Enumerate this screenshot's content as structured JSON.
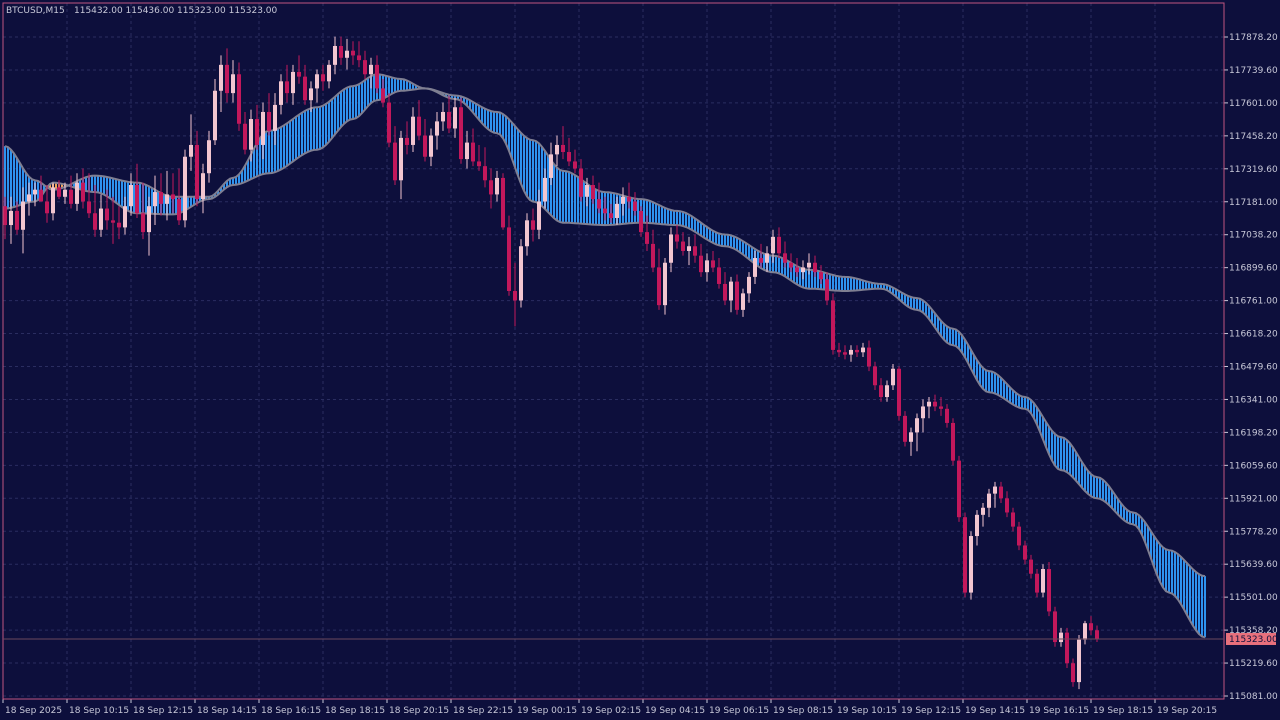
{
  "header": {
    "symbol": "BTCUSD,M15",
    "ohlc": "115432.00 115436.00 115323.00 115323.00"
  },
  "colors": {
    "background": "#0d0f3c",
    "grid": "#2a2d60",
    "frame": "#c0567f",
    "bull_candle": "#f2c6d0",
    "bear_candle": "#c2185b",
    "cloud_up": "#2e93f0",
    "cloud_down": "#f5a65b",
    "ma_line": "#7f7f92",
    "price_label_bg": "#e8707c",
    "price_label_text": "#0d0f3c"
  },
  "chart_data": {
    "type": "candlestick",
    "y_axis": {
      "range": [
        115081.0,
        117878.2
      ],
      "tick_labels": [
        "117878.20",
        "117739.60",
        "117601.00",
        "117458.20",
        "117319.60",
        "117181.00",
        "117038.20",
        "116899.60",
        "116761.00",
        "116618.20",
        "116479.60",
        "116341.00",
        "116198.20",
        "116059.60",
        "115921.00",
        "115778.20",
        "115639.60",
        "115501.00",
        "115358.20",
        "115219.60",
        "115081.00"
      ]
    },
    "x_axis": {
      "tick_labels": [
        "18 Sep 2025",
        "18 Sep 10:15",
        "18 Sep 12:15",
        "18 Sep 14:15",
        "18 Sep 16:15",
        "18 Sep 18:15",
        "18 Sep 20:15",
        "18 Sep 22:15",
        "19 Sep 00:15",
        "19 Sep 02:15",
        "19 Sep 04:15",
        "19 Sep 06:15",
        "19 Sep 08:15",
        "19 Sep 10:15",
        "19 Sep 12:15",
        "19 Sep 14:15",
        "19 Sep 16:15",
        "19 Sep 18:15",
        "19 Sep 20:15"
      ]
    },
    "current_price": "115323.00",
    "current_price_value": 115323.0,
    "cloud": [
      {
        "bar": 0,
        "fast": 117415,
        "slow": 117150
      },
      {
        "bar": 5,
        "fast": 117270,
        "slow": 117180
      },
      {
        "bar": 8,
        "fast": 117230,
        "slow": 117260
      },
      {
        "bar": 15,
        "fast": 117290,
        "slow": 117220
      },
      {
        "bar": 22,
        "fast": 117260,
        "slow": 117130
      },
      {
        "bar": 28,
        "fast": 117200,
        "slow": 117125
      },
      {
        "bar": 34,
        "fast": 117200,
        "slow": 117190
      },
      {
        "bar": 38,
        "fast": 117280,
        "slow": 117250
      },
      {
        "bar": 44,
        "fast": 117480,
        "slow": 117300
      },
      {
        "bar": 52,
        "fast": 117580,
        "slow": 117400
      },
      {
        "bar": 58,
        "fast": 117670,
        "slow": 117530
      },
      {
        "bar": 62,
        "fast": 117720,
        "slow": 117610
      },
      {
        "bar": 66,
        "fast": 117700,
        "slow": 117650
      },
      {
        "bar": 70,
        "fast": 117660,
        "slow": 117660
      },
      {
        "bar": 75,
        "fast": 117630,
        "slow": 117615
      },
      {
        "bar": 82,
        "fast": 117560,
        "slow": 117470
      },
      {
        "bar": 88,
        "fast": 117440,
        "slow": 117180
      },
      {
        "bar": 93,
        "fast": 117310,
        "slow": 117090
      },
      {
        "bar": 100,
        "fast": 117220,
        "slow": 117080
      },
      {
        "bar": 106,
        "fast": 117190,
        "slow": 117090
      },
      {
        "bar": 112,
        "fast": 117140,
        "slow": 117080
      },
      {
        "bar": 120,
        "fast": 117040,
        "slow": 116990
      },
      {
        "bar": 128,
        "fast": 116950,
        "slow": 116880
      },
      {
        "bar": 134,
        "fast": 116890,
        "slow": 116810
      },
      {
        "bar": 140,
        "fast": 116860,
        "slow": 116800
      },
      {
        "bar": 146,
        "fast": 116830,
        "slow": 116810
      },
      {
        "bar": 152,
        "fast": 116770,
        "slow": 116720
      },
      {
        "bar": 158,
        "fast": 116640,
        "slow": 116570
      },
      {
        "bar": 164,
        "fast": 116460,
        "slow": 116370
      },
      {
        "bar": 170,
        "fast": 116350,
        "slow": 116300
      },
      {
        "bar": 176,
        "fast": 116180,
        "slow": 116040
      },
      {
        "bar": 182,
        "fast": 116010,
        "slow": 115920
      },
      {
        "bar": 188,
        "fast": 115860,
        "slow": 115810
      },
      {
        "bar": 194,
        "fast": 115700,
        "slow": 115520
      },
      {
        "bar": 200,
        "fast": 115590,
        "slow": 115330
      }
    ],
    "candles": [
      [
        117160,
        117200,
        117020,
        117080
      ],
      [
        117080,
        117200,
        117000,
        117140
      ],
      [
        117140,
        117180,
        117040,
        117060
      ],
      [
        117060,
        117240,
        116960,
        117180
      ],
      [
        117180,
        117260,
        117120,
        117210
      ],
      [
        117210,
        117260,
        117160,
        117230
      ],
      [
        117230,
        117290,
        117200,
        117180
      ],
      [
        117180,
        117250,
        117090,
        117130
      ],
      [
        117130,
        117260,
        117100,
        117240
      ],
      [
        117240,
        117270,
        117190,
        117200
      ],
      [
        117200,
        117260,
        117170,
        117230
      ],
      [
        117230,
        117290,
        117150,
        117170
      ],
      [
        117170,
        117300,
        117140,
        117260
      ],
      [
        117260,
        117320,
        117150,
        117180
      ],
      [
        117180,
        117300,
        117110,
        117130
      ],
      [
        117130,
        117250,
        117030,
        117060
      ],
      [
        117060,
        117210,
        117030,
        117150
      ],
      [
        117150,
        117230,
        117060,
        117100
      ],
      [
        117100,
        117200,
        117000,
        117090
      ],
      [
        117090,
        117160,
        117020,
        117070
      ],
      [
        117070,
        117200,
        117040,
        117160
      ],
      [
        117160,
        117300,
        117120,
        117250
      ],
      [
        117250,
        117340,
        117110,
        117130
      ],
      [
        117130,
        117260,
        117020,
        117050
      ],
      [
        117050,
        117200,
        116950,
        117160
      ],
      [
        117160,
        117290,
        117080,
        117220
      ],
      [
        117220,
        117300,
        117120,
        117170
      ],
      [
        117170,
        117310,
        117100,
        117210
      ],
      [
        117210,
        117300,
        117130,
        117190
      ],
      [
        117190,
        117320,
        117080,
        117100
      ],
      [
        117100,
        117400,
        117070,
        117370
      ],
      [
        117370,
        117550,
        117310,
        117420
      ],
      [
        117420,
        117480,
        117160,
        117190
      ],
      [
        117190,
        117340,
        117130,
        117300
      ],
      [
        117300,
        117480,
        117260,
        117440
      ],
      [
        117440,
        117700,
        117420,
        117650
      ],
      [
        117650,
        117800,
        117560,
        117760
      ],
      [
        117760,
        117830,
        117600,
        117640
      ],
      [
        117640,
        117780,
        117600,
        117720
      ],
      [
        117720,
        117770,
        117480,
        117510
      ],
      [
        117510,
        117560,
        117380,
        117400
      ],
      [
        117400,
        117570,
        117350,
        117530
      ],
      [
        117530,
        117590,
        117400,
        117420
      ],
      [
        117420,
        117600,
        117360,
        117560
      ],
      [
        117560,
        117640,
        117460,
        117480
      ],
      [
        117480,
        117640,
        117420,
        117590
      ],
      [
        117590,
        117720,
        117550,
        117690
      ],
      [
        117690,
        117760,
        117600,
        117640
      ],
      [
        117640,
        117760,
        117590,
        117730
      ],
      [
        117730,
        117800,
        117680,
        117710
      ],
      [
        117710,
        117760,
        117590,
        117610
      ],
      [
        117610,
        117690,
        117560,
        117660
      ],
      [
        117660,
        117740,
        117600,
        117720
      ],
      [
        117720,
        117760,
        117650,
        117690
      ],
      [
        117690,
        117780,
        117660,
        117760
      ],
      [
        117760,
        117880,
        117720,
        117840
      ],
      [
        117840,
        117880,
        117760,
        117790
      ],
      [
        117790,
        117870,
        117740,
        117820
      ],
      [
        117820,
        117860,
        117760,
        117800
      ],
      [
        117800,
        117860,
        117750,
        117780
      ],
      [
        117780,
        117820,
        117700,
        117720
      ],
      [
        117720,
        117790,
        117660,
        117760
      ],
      [
        117760,
        117800,
        117640,
        117660
      ],
      [
        117660,
        117700,
        117580,
        117600
      ],
      [
        117600,
        117640,
        117410,
        117430
      ],
      [
        117430,
        117500,
        117250,
        117270
      ],
      [
        117270,
        117480,
        117190,
        117450
      ],
      [
        117450,
        117520,
        117380,
        117420
      ],
      [
        117420,
        117580,
        117390,
        117540
      ],
      [
        117540,
        117610,
        117440,
        117460
      ],
      [
        117460,
        117530,
        117350,
        117370
      ],
      [
        117370,
        117490,
        117330,
        117460
      ],
      [
        117460,
        117560,
        117400,
        117520
      ],
      [
        117520,
        117600,
        117480,
        117560
      ],
      [
        117560,
        117630,
        117470,
        117490
      ],
      [
        117490,
        117620,
        117450,
        117580
      ],
      [
        117580,
        117620,
        117340,
        117360
      ],
      [
        117360,
        117480,
        117320,
        117430
      ],
      [
        117430,
        117490,
        117330,
        117350
      ],
      [
        117350,
        117420,
        117310,
        117330
      ],
      [
        117330,
        117410,
        117240,
        117270
      ],
      [
        117270,
        117320,
        117150,
        117210
      ],
      [
        117210,
        117310,
        117180,
        117280
      ],
      [
        117280,
        117300,
        117060,
        117070
      ],
      [
        117070,
        117120,
        116780,
        116800
      ],
      [
        116800,
        116920,
        116650,
        116760
      ],
      [
        116760,
        117020,
        116730,
        116990
      ],
      [
        116990,
        117130,
        116950,
        117100
      ],
      [
        117100,
        117150,
        117010,
        117060
      ],
      [
        117060,
        117230,
        117020,
        117180
      ],
      [
        117180,
        117320,
        117150,
        117280
      ],
      [
        117280,
        117430,
        117250,
        117380
      ],
      [
        117380,
        117460,
        117330,
        117420
      ],
      [
        117420,
        117500,
        117360,
        117390
      ],
      [
        117390,
        117450,
        117330,
        117350
      ],
      [
        117350,
        117400,
        117300,
        117320
      ],
      [
        117320,
        117360,
        117180,
        117200
      ],
      [
        117200,
        117280,
        117160,
        117250
      ],
      [
        117250,
        117290,
        117170,
        117190
      ],
      [
        117190,
        117260,
        117130,
        117150
      ],
      [
        117150,
        117200,
        117100,
        117130
      ],
      [
        117130,
        117170,
        117090,
        117110
      ],
      [
        117110,
        117200,
        117080,
        117170
      ],
      [
        117170,
        117240,
        117120,
        117200
      ],
      [
        117200,
        117260,
        117150,
        117180
      ],
      [
        117180,
        117220,
        117120,
        117140
      ],
      [
        117140,
        117160,
        117030,
        117050
      ],
      [
        117050,
        117120,
        116970,
        117000
      ],
      [
        117000,
        117060,
        116880,
        116900
      ],
      [
        116900,
        116980,
        116720,
        116740
      ],
      [
        116740,
        116940,
        116700,
        116920
      ],
      [
        116920,
        117070,
        116880,
        117040
      ],
      [
        117040,
        117080,
        116980,
        117010
      ],
      [
        117010,
        117050,
        116950,
        116970
      ],
      [
        116970,
        117030,
        116910,
        116990
      ],
      [
        116990,
        117040,
        116920,
        116950
      ],
      [
        116950,
        117000,
        116860,
        116880
      ],
      [
        116880,
        116960,
        116840,
        116930
      ],
      [
        116930,
        116970,
        116880,
        116900
      ],
      [
        116900,
        116940,
        116810,
        116830
      ],
      [
        116830,
        116880,
        116740,
        116760
      ],
      [
        116760,
        116860,
        116710,
        116840
      ],
      [
        116840,
        116870,
        116700,
        116720
      ],
      [
        116720,
        116810,
        116690,
        116790
      ],
      [
        116790,
        116880,
        116750,
        116860
      ],
      [
        116860,
        116970,
        116830,
        116940
      ],
      [
        116940,
        117000,
        116900,
        116920
      ],
      [
        116920,
        116990,
        116880,
        116960
      ],
      [
        116960,
        117060,
        116920,
        117030
      ],
      [
        117030,
        117070,
        116940,
        116960
      ],
      [
        116960,
        117010,
        116900,
        116920
      ],
      [
        116920,
        116960,
        116880,
        116900
      ],
      [
        116900,
        116940,
        116860,
        116880
      ],
      [
        116880,
        116930,
        116850,
        116900
      ],
      [
        116900,
        116960,
        116870,
        116920
      ],
      [
        116920,
        116950,
        116860,
        116880
      ],
      [
        116880,
        116910,
        116830,
        116850
      ],
      [
        116850,
        116880,
        116740,
        116760
      ],
      [
        116760,
        116790,
        116530,
        116550
      ],
      [
        116550,
        116580,
        116520,
        116540
      ],
      [
        116540,
        116570,
        116510,
        116530
      ],
      [
        116530,
        116570,
        116500,
        116550
      ],
      [
        116550,
        116570,
        116520,
        116540
      ],
      [
        116540,
        116580,
        116520,
        116560
      ],
      [
        116560,
        116590,
        116460,
        116480
      ],
      [
        116480,
        116500,
        116380,
        116400
      ],
      [
        116400,
        116430,
        116330,
        116350
      ],
      [
        116350,
        116420,
        116330,
        116400
      ],
      [
        116400,
        116490,
        116380,
        116470
      ],
      [
        116470,
        116480,
        116250,
        116270
      ],
      [
        116270,
        116290,
        116140,
        116160
      ],
      [
        116160,
        116220,
        116100,
        116200
      ],
      [
        116200,
        116280,
        116120,
        116260
      ],
      [
        116260,
        116340,
        116200,
        116310
      ],
      [
        116310,
        116350,
        116260,
        116330
      ],
      [
        116330,
        116360,
        116290,
        116310
      ],
      [
        116310,
        116350,
        116270,
        116300
      ],
      [
        116300,
        116320,
        116220,
        116240
      ],
      [
        116240,
        116260,
        116060,
        116080
      ],
      [
        116080,
        116100,
        115820,
        115840
      ],
      [
        115840,
        115860,
        115500,
        115520
      ],
      [
        115520,
        115780,
        115490,
        115760
      ],
      [
        115760,
        115870,
        115720,
        115850
      ],
      [
        115850,
        115900,
        115800,
        115880
      ],
      [
        115880,
        115960,
        115840,
        115940
      ],
      [
        115940,
        115990,
        115880,
        115970
      ],
      [
        115970,
        115990,
        115900,
        115920
      ],
      [
        115920,
        115950,
        115840,
        115860
      ],
      [
        115860,
        115880,
        115780,
        115800
      ],
      [
        115800,
        115820,
        115700,
        115720
      ],
      [
        115720,
        115740,
        115640,
        115660
      ],
      [
        115660,
        115680,
        115580,
        115600
      ],
      [
        115600,
        115620,
        115500,
        115520
      ],
      [
        115520,
        115640,
        115500,
        115620
      ],
      [
        115620,
        115650,
        115420,
        115440
      ],
      [
        115440,
        115460,
        115290,
        115310
      ],
      [
        115310,
        115370,
        115290,
        115350
      ],
      [
        115350,
        115370,
        115200,
        115220
      ],
      [
        115220,
        115240,
        115120,
        115140
      ],
      [
        115140,
        115340,
        115110,
        115320
      ],
      [
        115320,
        115400,
        115300,
        115390
      ],
      [
        115390,
        115420,
        115340,
        115360
      ],
      [
        115360,
        115380,
        115310,
        115323
      ]
    ]
  }
}
